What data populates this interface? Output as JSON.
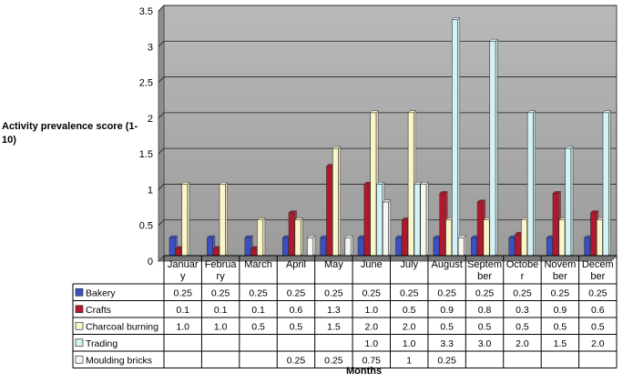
{
  "chart_data": {
    "type": "bar",
    "ylabel": "Activity prevalence score (1-10)",
    "xlabel": "Months",
    "ylim": [
      0,
      3.5
    ],
    "yticks": [
      "0",
      "0.5",
      "1",
      "1.5",
      "2",
      "2.5",
      "3",
      "3.5"
    ],
    "grid": true,
    "legend": "data-table",
    "categories": [
      [
        "Januar",
        "y"
      ],
      [
        "Februa",
        "ry"
      ],
      [
        "March"
      ],
      [
        "April"
      ],
      [
        "May"
      ],
      [
        "June"
      ],
      [
        "July"
      ],
      [
        "August"
      ],
      [
        "Septem",
        "ber"
      ],
      [
        "Octobe",
        "r"
      ],
      [
        "Novem",
        "ber"
      ],
      [
        "Decem",
        "ber"
      ]
    ],
    "series": [
      {
        "name": "Bakery",
        "color": "#3b4fc4",
        "values": [
          0.25,
          0.25,
          0.25,
          0.25,
          0.25,
          0.25,
          0.25,
          0.25,
          0.25,
          0.25,
          0.25,
          0.25
        ],
        "labels": [
          "0.25",
          "0.25",
          "0.25",
          "0.25",
          "0.25",
          "0.25",
          "0.25",
          "0.25",
          "0.25",
          "0.25",
          "0.25",
          "0.25"
        ]
      },
      {
        "name": "Crafts",
        "color": "#b3172b",
        "values": [
          0.1,
          0.1,
          0.1,
          0.6,
          1.25,
          1.0,
          0.5,
          0.87,
          0.75,
          0.3,
          0.87,
          0.6
        ],
        "labels": [
          "0.1",
          "0.1",
          "0.1",
          "0.6",
          "1.3",
          "1.0",
          "0.5",
          "0.9",
          "0.8",
          "0.3",
          "0.9",
          "0.6"
        ]
      },
      {
        "name": "Charcoal burning",
        "color": "#fbf6c8",
        "values": [
          1.0,
          1.0,
          0.5,
          0.5,
          1.5,
          2.0,
          2.0,
          0.5,
          0.5,
          0.5,
          0.5,
          0.5
        ],
        "labels": [
          "1.0",
          "1.0",
          "0.5",
          "0.5",
          "1.5",
          "2.0",
          "2.0",
          "0.5",
          "0.5",
          "0.5",
          "0.5",
          "0.5"
        ]
      },
      {
        "name": "Trading",
        "color": "#d4f3f7",
        "values": [
          null,
          null,
          null,
          null,
          null,
          1.0,
          1.0,
          3.3,
          3.0,
          2.0,
          1.5,
          2.0
        ],
        "labels": [
          "",
          "",
          "",
          "",
          "",
          "1.0",
          "1.0",
          "3.3",
          "3.0",
          "2.0",
          "1.5",
          "2.0"
        ]
      },
      {
        "name": "Moulding bricks",
        "color": "#f7f7f2",
        "values": [
          null,
          null,
          null,
          0.25,
          0.25,
          0.75,
          1.0,
          0.25,
          null,
          null,
          null,
          null
        ],
        "labels": [
          "",
          "",
          "",
          "0.25",
          "0.25",
          "0.75",
          "1",
          "0.25",
          "",
          "",
          "",
          ""
        ]
      }
    ]
  }
}
